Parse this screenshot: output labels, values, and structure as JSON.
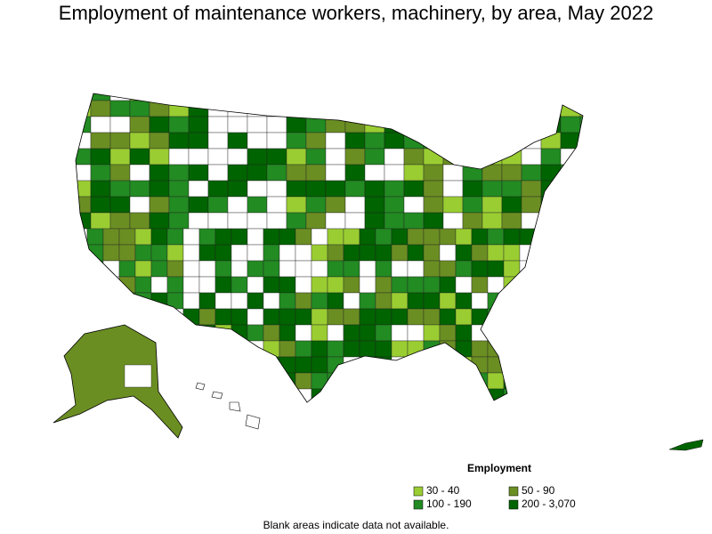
{
  "title": "Employment of maintenance workers, machinery, by area, May 2022",
  "legend": {
    "title": "Employment",
    "items": [
      {
        "label": "30 - 40",
        "color": "#9acd32"
      },
      {
        "label": "50 - 90",
        "color": "#6b8e23"
      },
      {
        "label": "100 - 190",
        "color": "#228b22"
      },
      {
        "label": "200 - 3,070",
        "color": "#006400"
      }
    ]
  },
  "note": "Blank areas indicate data not available."
}
